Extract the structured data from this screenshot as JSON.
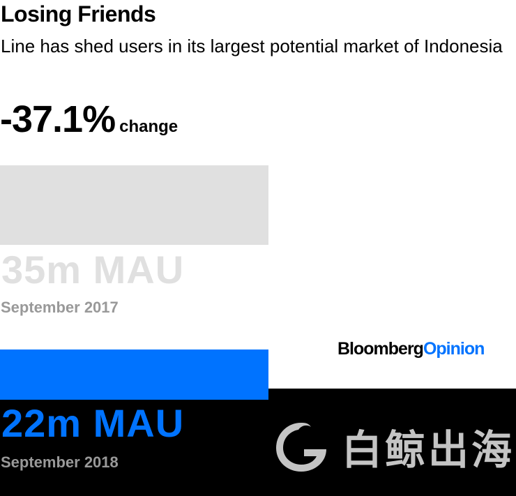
{
  "chart_data": {
    "type": "bar",
    "title": "Losing Friends",
    "subtitle": "Line has shed users in its largest potential market of Indonesia",
    "headline_value": "-37.1%",
    "headline_label": "change",
    "categories": [
      "September 2017",
      "September 2018"
    ],
    "values": [
      35,
      22
    ],
    "value_labels": [
      "35m MAU",
      "22m MAU"
    ],
    "unit": "m MAU",
    "orientation": "horizontal",
    "colors": {
      "2017": "#e0e0e0",
      "2018": "#0073ff"
    }
  },
  "branding": {
    "bloomberg": "Bloomberg",
    "opinion": "Opinion",
    "watermark": "白鲸出海"
  }
}
